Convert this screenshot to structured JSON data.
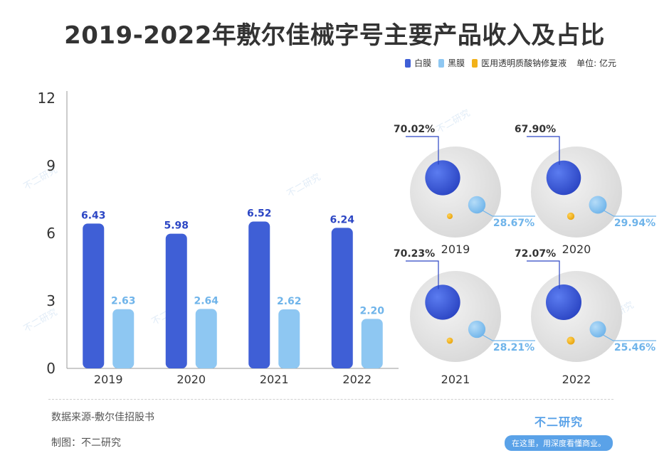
{
  "title": "2019-2022年敷尔佳械字号主要产品收入及占比",
  "legend": {
    "items": [
      {
        "label": "白膜",
        "color": "#3f5fd6"
      },
      {
        "label": "黑膜",
        "color": "#8ec7f2"
      },
      {
        "label": "医用透明质酸钠修复液",
        "color": "#f2b21a"
      }
    ],
    "unit": "单位: 亿元"
  },
  "chart_data": [
    {
      "type": "bar",
      "categories": [
        "2019",
        "2020",
        "2021",
        "2022"
      ],
      "series": [
        {
          "name": "白膜",
          "values": [
            6.43,
            5.98,
            6.52,
            6.24
          ],
          "color": "#3f5fd6"
        },
        {
          "name": "黑膜",
          "values": [
            2.63,
            2.64,
            2.62,
            2.2
          ],
          "color": "#8ec7f2"
        }
      ],
      "ylim": [
        0,
        12
      ],
      "yticks": [
        "0",
        "3",
        "6",
        "9",
        "12"
      ],
      "xlabel": "",
      "ylabel": ""
    },
    {
      "type": "pie",
      "note": "bubble-style share charts",
      "panels": [
        {
          "year": "2019",
          "white_share": "70.02%",
          "black_share": "28.67%"
        },
        {
          "year": "2020",
          "white_share": "67.90%",
          "black_share": "29.94%"
        },
        {
          "year": "2021",
          "white_share": "70.23%",
          "black_share": "28.21%"
        },
        {
          "year": "2022",
          "white_share": "72.07%",
          "black_share": "25.46%"
        }
      ]
    }
  ],
  "footer": {
    "source": "数据来源-敷尔佳招股书",
    "made_by": "制图：不二研究",
    "brand_name": "不二研究",
    "brand_slogan": "在这里，用深度看懂商业。"
  },
  "watermark": "不二研究"
}
